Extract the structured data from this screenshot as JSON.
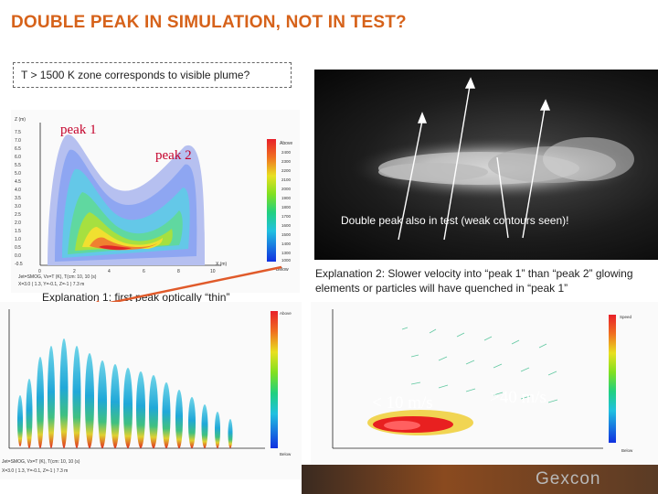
{
  "title": "DOUBLE PEAK IN SIMULATION, NOT IN TEST?",
  "subtitle": "T > 1500 K zone corresponds to visible plume?",
  "labels": {
    "peak1": "peak 1",
    "peak2": "peak 2",
    "photo_caption": "Double peak also in test (weak contours seen)!",
    "explanation1": "Explanation 1: first peak optically “thin”",
    "explanation2": "Explanation 2: Slower velocity into “peak 1” than “peak 2” glowing elements or particles will have quenched in “peak 1”",
    "vel_slow": "< 10 m/s",
    "vel_fast": ">40 m/s"
  },
  "plot1": {
    "y_axis_label": "Z (m)",
    "x_axis_label": "X (m)",
    "y_ticks": [
      "7.5",
      "7.0",
      "6.5",
      "6.0",
      "5.5",
      "5.0",
      "4.5",
      "4.0",
      "3.5",
      "3.0",
      "2.5",
      "2.0",
      "1.5",
      "1.0",
      "0.5",
      "0.0",
      "-0.5"
    ],
    "x_ticks": [
      "0",
      "2",
      "4",
      "6",
      "8",
      "10"
    ],
    "legend_title": "Above",
    "legend_values": [
      "2400",
      "2300",
      "2200",
      "2100",
      "2000",
      "1900",
      "1800",
      "1700",
      "1600",
      "1500",
      "1400",
      "1300",
      "1000"
    ],
    "legend_footer": "Below",
    "caption_line1": "Jet=SMOG, Vx=T (K), T(cm: 10, 10 (s)",
    "caption_line2": "X=3.0 ( 1.3, Y=-0.1, Z=-1 ) 7.3 m"
  },
  "plot2": {
    "legend_title": "Above",
    "legend_footer": "Below",
    "caption_line1": "Jet=SMOG, Vx=T (K), T(cm: 10, 10 (s)",
    "caption_line2": "X=3.0 ( 1.3, Y=-0.1, Z=-1 ) 7.3 m"
  },
  "plot3": {
    "legend_title": "Speed",
    "legend_footer": "Below"
  },
  "footer": {
    "logo": "Gexcon"
  },
  "colors": {
    "title": "#d6621a",
    "annotation_red": "#c4002a",
    "arrow_orange": "#e05a2a"
  }
}
